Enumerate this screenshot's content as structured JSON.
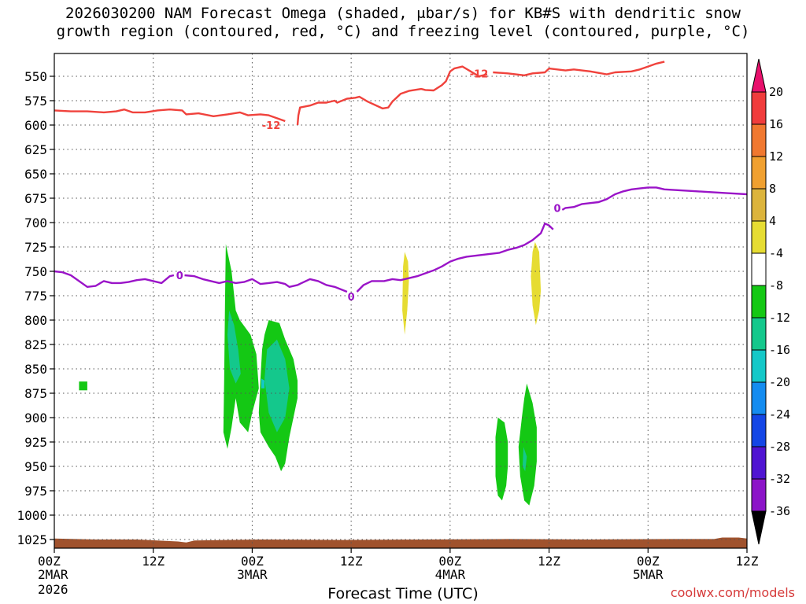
{
  "title": {
    "line1": "2026030200 NAM Forecast Omega (shaded, μbar/s) for KB#S with dendritic snow",
    "line2": "growth region (contoured, red, °C) and freezing level (contoured, purple, °C)"
  },
  "footer": {
    "xlabel": "Forecast Time (UTC)",
    "credit": "coolwx.com/models",
    "year": "2026"
  },
  "colors": {
    "dgz_contour": "#f0423c",
    "freezing_contour": "#9a14c8",
    "terrain": "#a0522d",
    "grid": "#555555"
  },
  "chart_data": {
    "type": "contour",
    "title": "2026030200 NAM Forecast Omega (shaded, μbar/s) for KB#S with dendritic snow growth region (contoured, red, °C) and freezing level (contoured, purple, °C)",
    "xlabel": "Forecast Time (UTC)",
    "ylabel": "",
    "x_unit": "hours since 2026-03-02 00Z",
    "xlim": [
      0,
      84
    ],
    "x_ticks": [
      {
        "x": 0,
        "label": "00Z",
        "sub": [
          "2MAR"
        ]
      },
      {
        "x": 12,
        "label": "12Z",
        "sub": []
      },
      {
        "x": 24,
        "label": "00Z",
        "sub": [
          "3MAR"
        ]
      },
      {
        "x": 36,
        "label": "12Z",
        "sub": []
      },
      {
        "x": 48,
        "label": "00Z",
        "sub": [
          "4MAR"
        ]
      },
      {
        "x": 60,
        "label": "12Z",
        "sub": []
      },
      {
        "x": 72,
        "label": "00Z",
        "sub": [
          "5MAR"
        ]
      },
      {
        "x": 84,
        "label": "12Z",
        "sub": []
      }
    ],
    "y_unit": "hPa",
    "ylim": [
      530,
      1040
    ],
    "y_ticks": [
      550,
      575,
      600,
      625,
      650,
      675,
      700,
      725,
      750,
      775,
      800,
      825,
      850,
      875,
      900,
      925,
      950,
      975,
      1000,
      1025
    ],
    "grid": true,
    "colorbar": {
      "labels": [
        "20",
        "16",
        "12",
        "8",
        "4",
        "-4",
        "-8",
        "-12",
        "-16",
        "-20",
        "-24",
        "-28",
        "-32",
        "-36"
      ],
      "colors": [
        "#e8106c",
        "#f03c3c",
        "#f07830",
        "#f0a030",
        "#dcb43c",
        "#e6dc32",
        "#ffffff",
        "#14c814",
        "#14c88c",
        "#14c8c8",
        "#148cf0",
        "#1446e6",
        "#5014d2",
        "#8c14c8",
        "#b4b4b4",
        "#000000"
      ]
    },
    "dgz_minus12": {
      "label": "-12",
      "label_at": [
        [
          26.3,
          600
        ],
        [
          51.5,
          547
        ]
      ],
      "segments": [
        [
          [
            0,
            585
          ],
          [
            2,
            586
          ],
          [
            4,
            586
          ],
          [
            6,
            587
          ],
          [
            7.5,
            586
          ],
          [
            8.5,
            584
          ],
          [
            9.5,
            587
          ],
          [
            11,
            587
          ],
          [
            12.5,
            585
          ],
          [
            14,
            584
          ],
          [
            15.5,
            585
          ],
          [
            16,
            589
          ],
          [
            17.5,
            588
          ],
          [
            19.3,
            591
          ],
          [
            21,
            589
          ],
          [
            22.5,
            587
          ],
          [
            23.5,
            590
          ],
          [
            25,
            589
          ],
          [
            26,
            590
          ],
          [
            28,
            596
          ]
        ],
        [
          [
            29.5,
            600
          ],
          [
            29.6,
            590
          ],
          [
            29.8,
            582
          ],
          [
            31,
            580
          ],
          [
            32,
            577
          ],
          [
            33,
            577
          ],
          [
            34,
            575
          ],
          [
            34.3,
            577
          ],
          [
            35.5,
            573
          ],
          [
            36.5,
            572
          ],
          [
            37,
            571
          ],
          [
            38,
            576
          ],
          [
            39.8,
            583
          ],
          [
            40.5,
            582
          ],
          [
            41,
            576
          ],
          [
            42,
            568
          ],
          [
            43,
            565
          ],
          [
            44.5,
            563
          ],
          [
            45,
            564
          ],
          [
            46,
            564.5
          ],
          [
            47,
            559
          ],
          [
            47.5,
            555
          ],
          [
            48,
            545
          ],
          [
            48.5,
            542
          ],
          [
            49.5,
            540
          ],
          [
            50.5,
            545
          ],
          [
            51.5,
            550
          ],
          [
            52.5,
            548
          ]
        ],
        [
          [
            53.2,
            546
          ],
          [
            55,
            547
          ],
          [
            57,
            549
          ],
          [
            58,
            547
          ],
          [
            59.5,
            546
          ],
          [
            60,
            542
          ],
          [
            61,
            543
          ],
          [
            62,
            544
          ],
          [
            63,
            543
          ],
          [
            65,
            545
          ],
          [
            67,
            548
          ],
          [
            68,
            546
          ],
          [
            70,
            545
          ],
          [
            71,
            543
          ],
          [
            72,
            540
          ],
          [
            73,
            537
          ],
          [
            74,
            535
          ]
        ]
      ]
    },
    "freezing_0": {
      "label": "0",
      "label_at": [
        [
          15.2,
          754
        ],
        [
          36,
          776
        ],
        [
          61,
          685
        ]
      ],
      "segments": [
        [
          [
            0,
            750
          ],
          [
            1,
            751
          ],
          [
            2,
            754
          ],
          [
            4,
            766
          ],
          [
            5,
            765
          ],
          [
            6,
            760
          ],
          [
            7,
            762
          ],
          [
            8,
            762
          ],
          [
            9,
            761
          ],
          [
            10,
            759
          ],
          [
            11,
            758
          ],
          [
            12,
            760
          ],
          [
            13,
            762
          ],
          [
            14,
            755
          ],
          [
            14.5,
            754
          ]
        ],
        [
          [
            15.8,
            754
          ],
          [
            17,
            755
          ],
          [
            18,
            758
          ],
          [
            19,
            760
          ],
          [
            20,
            762
          ],
          [
            21,
            760
          ],
          [
            22,
            762
          ],
          [
            23,
            761
          ],
          [
            24,
            758
          ],
          [
            25,
            763
          ],
          [
            26,
            762
          ],
          [
            27,
            761
          ],
          [
            28,
            763
          ],
          [
            28.5,
            766
          ],
          [
            29.5,
            764
          ],
          [
            30.5,
            760
          ],
          [
            31,
            758
          ],
          [
            32,
            760
          ],
          [
            33,
            764
          ],
          [
            34,
            766
          ],
          [
            35.5,
            771
          ]
        ],
        [
          [
            36.7,
            771
          ],
          [
            37.5,
            764
          ],
          [
            38.5,
            760
          ],
          [
            40,
            760
          ],
          [
            41,
            758
          ],
          [
            42,
            759
          ],
          [
            43,
            757
          ],
          [
            44,
            755
          ],
          [
            45,
            752
          ],
          [
            46,
            749
          ],
          [
            47,
            745
          ],
          [
            48,
            740
          ],
          [
            49,
            737
          ],
          [
            50,
            735
          ],
          [
            51,
            734
          ],
          [
            52,
            733
          ],
          [
            53,
            732
          ],
          [
            54,
            731
          ],
          [
            55,
            728
          ],
          [
            56,
            726
          ],
          [
            57,
            723
          ],
          [
            58,
            718
          ],
          [
            59,
            711
          ],
          [
            59.5,
            701
          ],
          [
            60,
            703
          ],
          [
            60.5,
            707
          ]
        ],
        [
          [
            61.6,
            687
          ],
          [
            62,
            685
          ],
          [
            63,
            684
          ],
          [
            64,
            681
          ],
          [
            65,
            680
          ],
          [
            66,
            679
          ],
          [
            67,
            676
          ],
          [
            68,
            671
          ],
          [
            69,
            668
          ],
          [
            70,
            666
          ],
          [
            71,
            665
          ],
          [
            72,
            664
          ],
          [
            73,
            664
          ],
          [
            74,
            666
          ],
          [
            76,
            667
          ],
          [
            78,
            668
          ],
          [
            80,
            669
          ],
          [
            82,
            670
          ],
          [
            84,
            671
          ]
        ]
      ]
    },
    "omega_regions": [
      {
        "level": "-4",
        "points": [
          [
            3.0,
            863
          ],
          [
            4.0,
            863
          ],
          [
            4.0,
            872
          ],
          [
            3.0,
            872
          ]
        ]
      },
      {
        "level": "-4",
        "points": [
          [
            20.8,
            722
          ],
          [
            21.5,
            750
          ],
          [
            22.0,
            790
          ],
          [
            22.5,
            800
          ],
          [
            23.8,
            815
          ],
          [
            24.5,
            835
          ],
          [
            24.8,
            870
          ],
          [
            24.0,
            895
          ],
          [
            23.5,
            915
          ],
          [
            22.5,
            905
          ],
          [
            22.0,
            880
          ],
          [
            21.5,
            910
          ],
          [
            21.0,
            932
          ],
          [
            20.5,
            915
          ],
          [
            20.6,
            860
          ],
          [
            20.7,
            780
          ]
        ]
      },
      {
        "level": "-8",
        "points": [
          [
            21.2,
            790
          ],
          [
            21.8,
            805
          ],
          [
            22.3,
            830
          ],
          [
            22.6,
            855
          ],
          [
            22.0,
            865
          ],
          [
            21.3,
            850
          ],
          [
            21.0,
            815
          ]
        ]
      },
      {
        "level": "-4",
        "points": [
          [
            25.5,
            815
          ],
          [
            26.0,
            800
          ],
          [
            27.3,
            803
          ],
          [
            28.0,
            820
          ],
          [
            29.0,
            840
          ],
          [
            29.5,
            862
          ],
          [
            29.5,
            880
          ],
          [
            29.0,
            900
          ],
          [
            28.5,
            920
          ],
          [
            28.0,
            947
          ],
          [
            27.5,
            955
          ],
          [
            26.8,
            940
          ],
          [
            26.0,
            930
          ],
          [
            25.0,
            915
          ],
          [
            24.8,
            895
          ],
          [
            25.0,
            860
          ],
          [
            25.2,
            830
          ]
        ]
      },
      {
        "level": "-8",
        "points": [
          [
            25.8,
            830
          ],
          [
            27.0,
            820
          ],
          [
            28.0,
            840
          ],
          [
            28.5,
            870
          ],
          [
            28.0,
            900
          ],
          [
            27.0,
            915
          ],
          [
            26.0,
            895
          ],
          [
            25.5,
            860
          ]
        ]
      },
      {
        "level": "-12",
        "points": [
          [
            25.1,
            860
          ],
          [
            25.5,
            862
          ],
          [
            25.5,
            870
          ],
          [
            25.1,
            870
          ]
        ]
      },
      {
        "level": "4",
        "points": [
          [
            42.5,
            730
          ],
          [
            42.9,
            740
          ],
          [
            43.0,
            760
          ],
          [
            42.8,
            790
          ],
          [
            42.5,
            815
          ],
          [
            42.2,
            790
          ],
          [
            42.3,
            745
          ]
        ]
      },
      {
        "level": "4",
        "points": [
          [
            58.3,
            720
          ],
          [
            58.8,
            730
          ],
          [
            59.0,
            770
          ],
          [
            58.8,
            790
          ],
          [
            58.4,
            805
          ],
          [
            58.0,
            785
          ],
          [
            57.8,
            755
          ],
          [
            58.0,
            730
          ]
        ]
      },
      {
        "level": "-4",
        "points": [
          [
            53.8,
            900
          ],
          [
            54.6,
            905
          ],
          [
            55.0,
            925
          ],
          [
            55.0,
            950
          ],
          [
            54.8,
            970
          ],
          [
            54.3,
            985
          ],
          [
            53.8,
            980
          ],
          [
            53.5,
            960
          ],
          [
            53.5,
            920
          ]
        ]
      },
      {
        "level": "-4",
        "points": [
          [
            57.3,
            865
          ],
          [
            58.0,
            885
          ],
          [
            58.5,
            910
          ],
          [
            58.5,
            945
          ],
          [
            58.2,
            970
          ],
          [
            57.6,
            990
          ],
          [
            57.0,
            985
          ],
          [
            56.5,
            960
          ],
          [
            56.3,
            930
          ],
          [
            56.7,
            900
          ],
          [
            57.0,
            880
          ]
        ]
      },
      {
        "level": "-8",
        "points": [
          [
            56.9,
            930
          ],
          [
            57.3,
            940
          ],
          [
            57.1,
            955
          ],
          [
            56.8,
            950
          ]
        ]
      }
    ],
    "terrain_top": [
      [
        0,
        1024
      ],
      [
        5,
        1025
      ],
      [
        10,
        1025
      ],
      [
        15,
        1027
      ],
      [
        16,
        1028
      ],
      [
        17,
        1026
      ],
      [
        25,
        1025
      ],
      [
        35,
        1025.5
      ],
      [
        45,
        1025
      ],
      [
        55,
        1024.5
      ],
      [
        65,
        1025
      ],
      [
        75,
        1024.5
      ],
      [
        80,
        1024.5
      ],
      [
        81,
        1023
      ],
      [
        83,
        1023
      ],
      [
        84,
        1024
      ]
    ]
  }
}
